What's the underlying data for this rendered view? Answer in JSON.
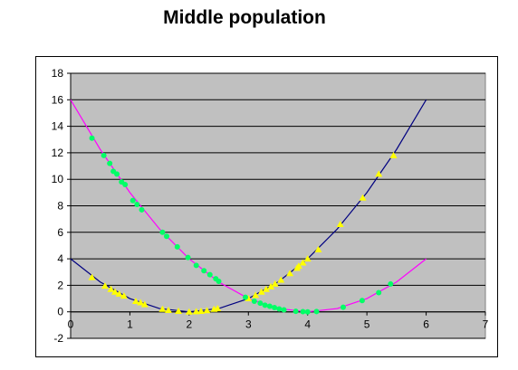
{
  "chart_data": {
    "type": "scatter",
    "title": "Middle population",
    "xlabel": "",
    "ylabel": "",
    "xlim": [
      0,
      7
    ],
    "ylim": [
      -2,
      18
    ],
    "x_ticks": [
      "0",
      "1",
      "2",
      "3",
      "4",
      "5",
      "6",
      "7"
    ],
    "y_ticks": [
      "-2",
      "0",
      "2",
      "4",
      "6",
      "8",
      "10",
      "12",
      "14",
      "16",
      "18"
    ],
    "grid": "horizontal",
    "legend": "none",
    "plot_background": "#c0c0c0",
    "curves": [
      {
        "color": "#000080",
        "x": [
          0,
          0.5,
          1,
          1.5,
          2,
          2.5,
          3,
          3.5,
          4,
          4.5,
          5,
          5.5,
          6
        ],
        "y": [
          4,
          2.25,
          1,
          0.25,
          0,
          0.25,
          1,
          2.25,
          4,
          6.25,
          9,
          12.25,
          16
        ]
      },
      {
        "color": "#ff00ff",
        "x": [
          0,
          0.5,
          1,
          1.5,
          2,
          2.5,
          3,
          3.5,
          4,
          4.5,
          5,
          5.5,
          6
        ],
        "y": [
          16,
          12.25,
          9,
          6.25,
          4,
          2.25,
          1,
          0.25,
          0,
          0.25,
          1,
          2.25,
          4
        ]
      }
    ],
    "series": [
      {
        "color": "#ffff00",
        "marker": "triangle",
        "x": [
          0.36,
          0.58,
          0.68,
          0.75,
          0.82,
          0.9,
          1.1,
          1.18,
          1.25,
          1.55,
          1.65,
          1.82,
          2.0,
          2.12,
          2.2,
          2.3,
          2.42,
          2.48,
          3.0,
          3.12,
          3.22,
          3.3,
          3.38,
          3.45,
          3.55,
          3.7,
          3.82,
          3.85,
          3.92,
          4.0,
          4.18,
          4.55,
          4.93,
          5.2,
          5.45
        ],
        "y": [
          2.6,
          1.95,
          1.7,
          1.5,
          1.35,
          1.2,
          0.8,
          0.7,
          0.55,
          0.2,
          0.12,
          0.05,
          0.0,
          0.02,
          0.05,
          0.1,
          0.2,
          0.25,
          1.0,
          1.25,
          1.5,
          1.7,
          1.9,
          2.1,
          2.4,
          2.9,
          3.3,
          3.45,
          3.7,
          4.0,
          4.7,
          6.6,
          8.6,
          10.4,
          11.8
        ]
      },
      {
        "color": "#00ff66",
        "marker": "circle",
        "x": [
          0.36,
          0.56,
          0.66,
          0.72,
          0.78,
          0.86,
          0.92,
          1.05,
          1.12,
          1.2,
          1.55,
          1.62,
          1.8,
          1.98,
          2.12,
          2.25,
          2.35,
          2.45,
          2.5,
          2.95,
          3.1,
          3.2,
          3.28,
          3.36,
          3.44,
          3.52,
          3.6,
          3.8,
          3.92,
          4.0,
          4.15,
          4.6,
          4.92,
          5.2,
          5.4
        ],
        "y": [
          13.1,
          11.8,
          11.2,
          10.6,
          10.4,
          9.8,
          9.6,
          8.4,
          8.1,
          7.7,
          6.0,
          5.7,
          4.9,
          4.1,
          3.5,
          3.1,
          2.8,
          2.5,
          2.3,
          1.1,
          0.8,
          0.65,
          0.5,
          0.42,
          0.32,
          0.22,
          0.15,
          0.04,
          0.01,
          0.0,
          0.02,
          0.35,
          0.85,
          1.45,
          2.1
        ]
      }
    ]
  }
}
